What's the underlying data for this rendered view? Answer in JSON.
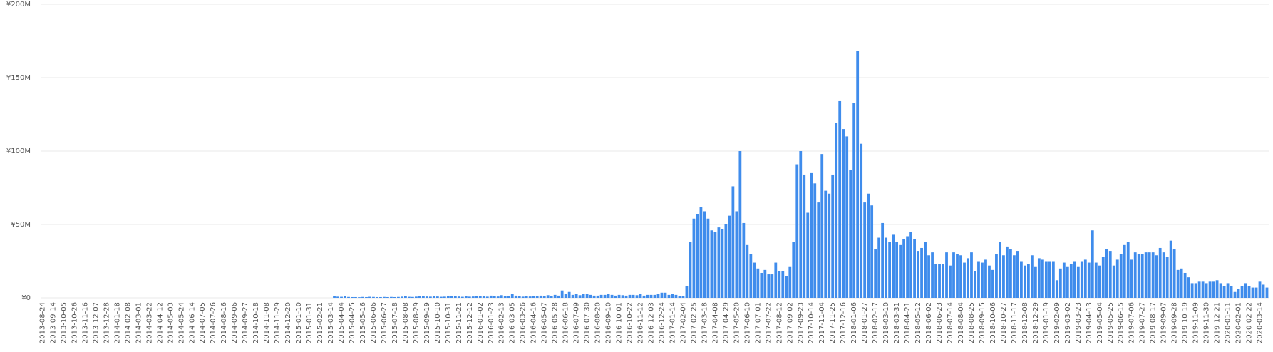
{
  "chart_data": {
    "type": "bar",
    "color": "#3f8cec",
    "grid": true,
    "ylim": [
      0,
      200000000
    ],
    "yticks": [
      {
        "value": 0,
        "label": "¥0"
      },
      {
        "value": 50000000,
        "label": "¥50M"
      },
      {
        "value": 100000000,
        "label": "¥100M"
      },
      {
        "value": 150000000,
        "label": "¥150M"
      },
      {
        "value": 200000000,
        "label": "¥200M"
      }
    ],
    "categories": [
      "2013-08-24",
      null,
      null,
      "2013-09-14",
      null,
      null,
      "2013-10-05",
      null,
      null,
      "2013-10-26",
      null,
      null,
      "2013-11-16",
      null,
      null,
      "2013-12-07",
      null,
      null,
      "2013-12-28",
      null,
      null,
      "2014-01-18",
      null,
      null,
      "2014-02-08",
      null,
      null,
      "2014-03-01",
      null,
      null,
      "2014-03-22",
      null,
      null,
      "2014-04-12",
      null,
      null,
      "2014-05-03",
      null,
      null,
      "2014-05-24",
      null,
      null,
      "2014-06-14",
      null,
      null,
      "2014-07-05",
      null,
      null,
      "2014-07-26",
      null,
      null,
      "2014-08-16",
      null,
      null,
      "2014-09-06",
      null,
      null,
      "2014-09-27",
      null,
      null,
      "2014-10-18",
      null,
      null,
      "2014-11-08",
      null,
      null,
      "2014-11-29",
      null,
      null,
      "2014-12-20",
      null,
      null,
      "2015-01-10",
      null,
      null,
      "2015-01-31",
      null,
      null,
      "2015-02-21",
      null,
      null,
      "2015-03-14",
      null,
      null,
      "2015-04-04",
      null,
      null,
      "2015-04-25",
      null,
      null,
      "2015-05-16",
      null,
      null,
      "2015-06-06",
      null,
      null,
      "2015-06-27",
      null,
      null,
      "2015-07-18",
      null,
      null,
      "2015-08-08",
      null,
      null,
      "2015-08-29",
      null,
      null,
      "2015-09-19",
      null,
      null,
      "2015-10-10",
      null,
      null,
      "2015-10-31",
      null,
      null,
      "2015-11-21",
      null,
      null,
      "2015-12-12",
      null,
      null,
      "2016-01-02",
      null,
      null,
      "2016-01-23",
      null,
      null,
      "2016-02-13",
      null,
      null,
      "2016-03-05",
      null,
      null,
      "2016-03-26",
      null,
      null,
      "2016-04-16",
      null,
      null,
      "2016-05-07",
      null,
      null,
      "2016-05-28",
      null,
      null,
      "2016-06-18",
      null,
      null,
      "2016-07-09",
      null,
      null,
      "2016-07-30",
      null,
      null,
      "2016-08-20",
      null,
      null,
      "2016-09-10",
      null,
      null,
      "2016-10-01",
      null,
      null,
      "2016-10-22",
      null,
      null,
      "2016-11-12",
      null,
      null,
      "2016-12-03",
      null,
      null,
      "2016-12-24",
      null,
      null,
      "2017-01-14",
      null,
      null,
      "2017-02-04",
      null,
      null,
      "2017-02-25",
      null,
      null,
      "2017-03-18",
      null,
      null,
      "2017-04-08",
      null,
      null,
      "2017-04-29",
      null,
      null,
      "2017-05-20",
      null,
      null,
      "2017-06-10",
      null,
      null,
      "2017-07-01",
      null,
      null,
      "2017-07-22",
      null,
      null,
      "2017-08-12",
      null,
      null,
      "2017-09-02",
      null,
      null,
      "2017-09-23",
      null,
      null,
      "2017-10-14",
      null,
      null,
      "2017-11-04",
      null,
      null,
      "2017-11-25",
      null,
      null,
      "2017-12-16",
      null,
      null,
      "2018-01-06",
      null,
      null,
      "2018-01-27",
      null,
      null,
      "2018-02-17",
      null,
      null,
      "2018-03-10",
      null,
      null,
      "2018-03-31",
      null,
      null,
      "2018-04-21",
      null,
      null,
      "2018-05-12",
      null,
      null,
      "2018-06-02",
      null,
      null,
      "2018-06-23",
      null,
      null,
      "2018-07-14",
      null,
      null,
      "2018-08-04",
      null,
      null,
      "2018-08-25",
      null,
      null,
      "2018-09-15",
      null,
      null,
      "2018-10-06",
      null,
      null,
      "2018-10-27",
      null,
      null,
      "2018-11-17",
      null,
      null,
      "2018-12-08",
      null,
      null,
      "2018-12-29",
      null,
      null,
      "2019-01-19",
      null,
      null,
      "2019-02-09",
      null,
      null,
      "2019-03-02",
      null,
      null,
      "2019-03-23",
      null,
      null,
      "2019-04-13",
      null,
      null,
      "2019-05-04",
      null,
      null,
      "2019-05-25",
      null,
      null,
      "2019-06-15",
      null,
      null,
      "2019-07-06",
      null,
      null,
      "2019-07-27",
      null,
      null,
      "2019-08-17",
      null,
      null,
      "2019-09-07",
      null,
      null,
      "2019-09-28",
      null,
      null,
      "2019-10-19",
      null,
      null,
      "2019-11-09",
      null,
      null,
      "2019-11-30",
      null,
      null,
      "2019-12-21",
      null,
      null,
      "2020-01-11",
      null,
      null,
      "2020-02-01",
      null,
      null,
      "2020-02-22",
      null,
      null,
      "2020-03-14",
      null,
      null
    ],
    "values": [
      0,
      0,
      0,
      0,
      0,
      0,
      0,
      0,
      0,
      0,
      0,
      0,
      0,
      0,
      0,
      0,
      0,
      0,
      0,
      0,
      0,
      0,
      0,
      0,
      0,
      0,
      0,
      0,
      0,
      0,
      0,
      0,
      0,
      0,
      0,
      0,
      0,
      0,
      0,
      0,
      0,
      0,
      0,
      0,
      0,
      0,
      0,
      0,
      0,
      0,
      0,
      0,
      0,
      0,
      0,
      0,
      0,
      0,
      0,
      0,
      0,
      0,
      0,
      0,
      0,
      0,
      0,
      0,
      0,
      0,
      0,
      0,
      0,
      0,
      0,
      0,
      0,
      0,
      0,
      0,
      0,
      0,
      1000000,
      800000,
      700000,
      1000000,
      600000,
      500000,
      500000,
      400000,
      600000,
      500000,
      700000,
      600000,
      500000,
      500000,
      600000,
      500000,
      600000,
      500000,
      600000,
      800000,
      1000000,
      700000,
      600000,
      800000,
      1000000,
      1200000,
      900000,
      800000,
      1000000,
      900000,
      700000,
      800000,
      1000000,
      1100000,
      1200000,
      900000,
      700000,
      1000000,
      800000,
      900000,
      1000000,
      1200000,
      1000000,
      800000,
      1500000,
      1000000,
      900000,
      1800000,
      1200000,
      1000000,
      2500000,
      1500000,
      1000000,
      800000,
      1000000,
      900000,
      1000000,
      1200000,
      1500000,
      1000000,
      1800000,
      1200000,
      2000000,
      1500000,
      5000000,
      2500000,
      4000000,
      2000000,
      2500000,
      1800000,
      2500000,
      2500000,
      2000000,
      1500000,
      1500000,
      2000000,
      2000000,
      2500000,
      2000000,
      1500000,
      2000000,
      1800000,
      1500000,
      2000000,
      2000000,
      1800000,
      2500000,
      1500000,
      2000000,
      2000000,
      2000000,
      2500000,
      3500000,
      3500000,
      2000000,
      2500000,
      2000000,
      1000000,
      1000000,
      8000000,
      38000000,
      54000000,
      57000000,
      62000000,
      59000000,
      54000000,
      46000000,
      45000000,
      48000000,
      47000000,
      50000000,
      56000000,
      76000000,
      59000000,
      100000000,
      51000000,
      36000000,
      30000000,
      24000000,
      20000000,
      17000000,
      19000000,
      16000000,
      16000000,
      24000000,
      18000000,
      18000000,
      15000000,
      21000000,
      38000000,
      91000000,
      100000000,
      84000000,
      58000000,
      85000000,
      78000000,
      65000000,
      98000000,
      73000000,
      71000000,
      84000000,
      119000000,
      134000000,
      115000000,
      110000000,
      87000000,
      133000000,
      168000000,
      105000000,
      65000000,
      71000000,
      63000000,
      33000000,
      41000000,
      51000000,
      41000000,
      38000000,
      43000000,
      38000000,
      36000000,
      40000000,
      42000000,
      45000000,
      40000000,
      32000000,
      34000000,
      38000000,
      29000000,
      31000000,
      23000000,
      23000000,
      23000000,
      31000000,
      22000000,
      31000000,
      30000000,
      29000000,
      24000000,
      27000000,
      31000000,
      18000000,
      25000000,
      24000000,
      26000000,
      22000000,
      19000000,
      30000000,
      38000000,
      29000000,
      35000000,
      33000000,
      29000000,
      32000000,
      25000000,
      22000000,
      23000000,
      29000000,
      21000000,
      27000000,
      26000000,
      25000000,
      25000000,
      25000000,
      12000000,
      20000000,
      24000000,
      21000000,
      23000000,
      25000000,
      21000000,
      25000000,
      26000000,
      24000000,
      46000000,
      24000000,
      22000000,
      28000000,
      33000000,
      32000000,
      22000000,
      26000000,
      30000000,
      36000000,
      38000000,
      26000000,
      31000000,
      30000000,
      30000000,
      31000000,
      31000000,
      31000000,
      29000000,
      34000000,
      31000000,
      28000000,
      39000000,
      33000000,
      19000000,
      20000000,
      17000000,
      14000000,
      10000000,
      10000000,
      11000000,
      11000000,
      10000000,
      11000000,
      11000000,
      12000000,
      10000000,
      8000000,
      10000000,
      8000000,
      4000000,
      6000000,
      8000000,
      10000000,
      8000000,
      7000000,
      7000000,
      11000000,
      9000000,
      7000000
    ]
  }
}
